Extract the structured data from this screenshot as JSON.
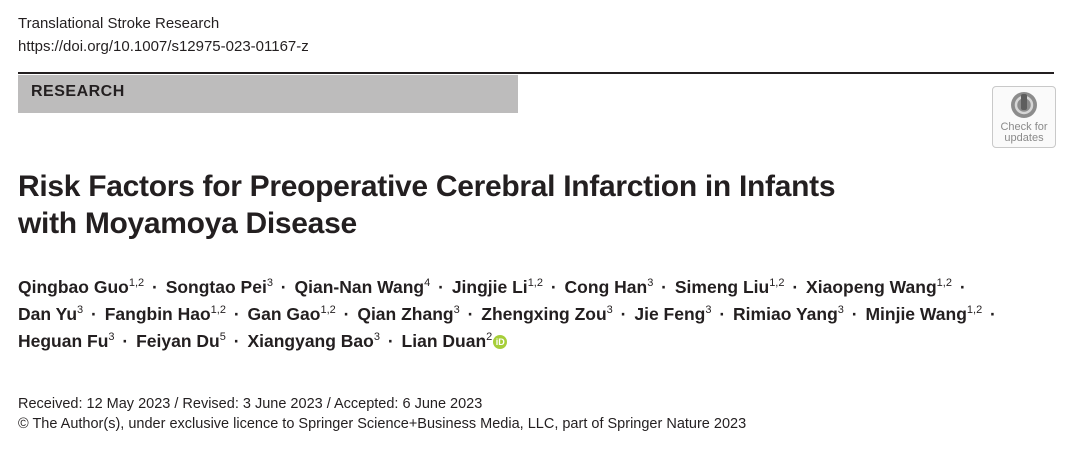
{
  "header": {
    "journal": "Translational Stroke Research",
    "doi": "https://doi.org/10.1007/s12975-023-01167-z"
  },
  "section_label": "RESEARCH",
  "badge": {
    "line1": "Check for",
    "line2": "updates",
    "icon": "check-for-updates-icon"
  },
  "title": {
    "line1": "Risk Factors for Preoperative Cerebral Infarction in Infants",
    "line2": "with Moyamoya Disease"
  },
  "authors": [
    {
      "name": "Qingbao Guo",
      "aff": "1,2"
    },
    {
      "name": "Songtao Pei",
      "aff": "3"
    },
    {
      "name": "Qian-Nan Wang",
      "aff": "4"
    },
    {
      "name": "Jingjie Li",
      "aff": "1,2"
    },
    {
      "name": "Cong Han",
      "aff": "3"
    },
    {
      "name": "Simeng Liu",
      "aff": "1,2"
    },
    {
      "name": "Xiaopeng Wang",
      "aff": "1,2"
    },
    {
      "name": "Dan Yu",
      "aff": "3"
    },
    {
      "name": "Fangbin Hao",
      "aff": "1,2"
    },
    {
      "name": "Gan Gao",
      "aff": "1,2"
    },
    {
      "name": "Qian Zhang",
      "aff": "3"
    },
    {
      "name": "Zhengxing Zou",
      "aff": "3"
    },
    {
      "name": "Jie Feng",
      "aff": "3"
    },
    {
      "name": "Rimiao Yang",
      "aff": "3"
    },
    {
      "name": "Minjie Wang",
      "aff": "1,2"
    },
    {
      "name": "Heguan Fu",
      "aff": "3"
    },
    {
      "name": "Feiyan Du",
      "aff": "5"
    },
    {
      "name": "Xiangyang Bao",
      "aff": "3"
    },
    {
      "name": "Lian Duan",
      "aff": "2",
      "orcid": true
    }
  ],
  "author_separator": "·",
  "orcid_icon": "orcid-icon",
  "orcid_color": "#a6ce39",
  "dates": "Received: 12 May 2023 / Revised: 3 June 2023 / Accepted: 6 June 2023",
  "copyright": "© The Author(s), under exclusive licence to Springer Science+Business Media, LLC, part of Springer Nature 2023"
}
